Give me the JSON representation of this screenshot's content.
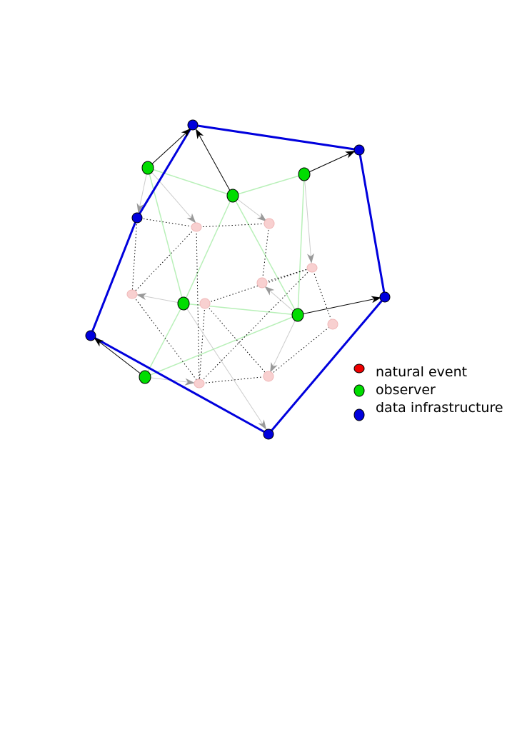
{
  "legend": {
    "items": [
      {
        "label": "natural event",
        "color": "#ee0000"
      },
      {
        "label": "observer",
        "color": "#00dd00"
      },
      {
        "label": "data infrastructure",
        "color": "#0000dd"
      }
    ]
  },
  "colors": {
    "natural_event_fill": "#f8d0d0",
    "natural_event_stroke": "#f0b8b8",
    "observer_fill": "#00dd00",
    "infrastructure_fill": "#0000dd",
    "node_outline": "#000000",
    "infrastructure_edge": "#0000dd",
    "observer_edge": "#b8f0b8",
    "event_link": "#000000",
    "observation_arrow": "#999999",
    "upload_arrow": "#000000"
  }
}
